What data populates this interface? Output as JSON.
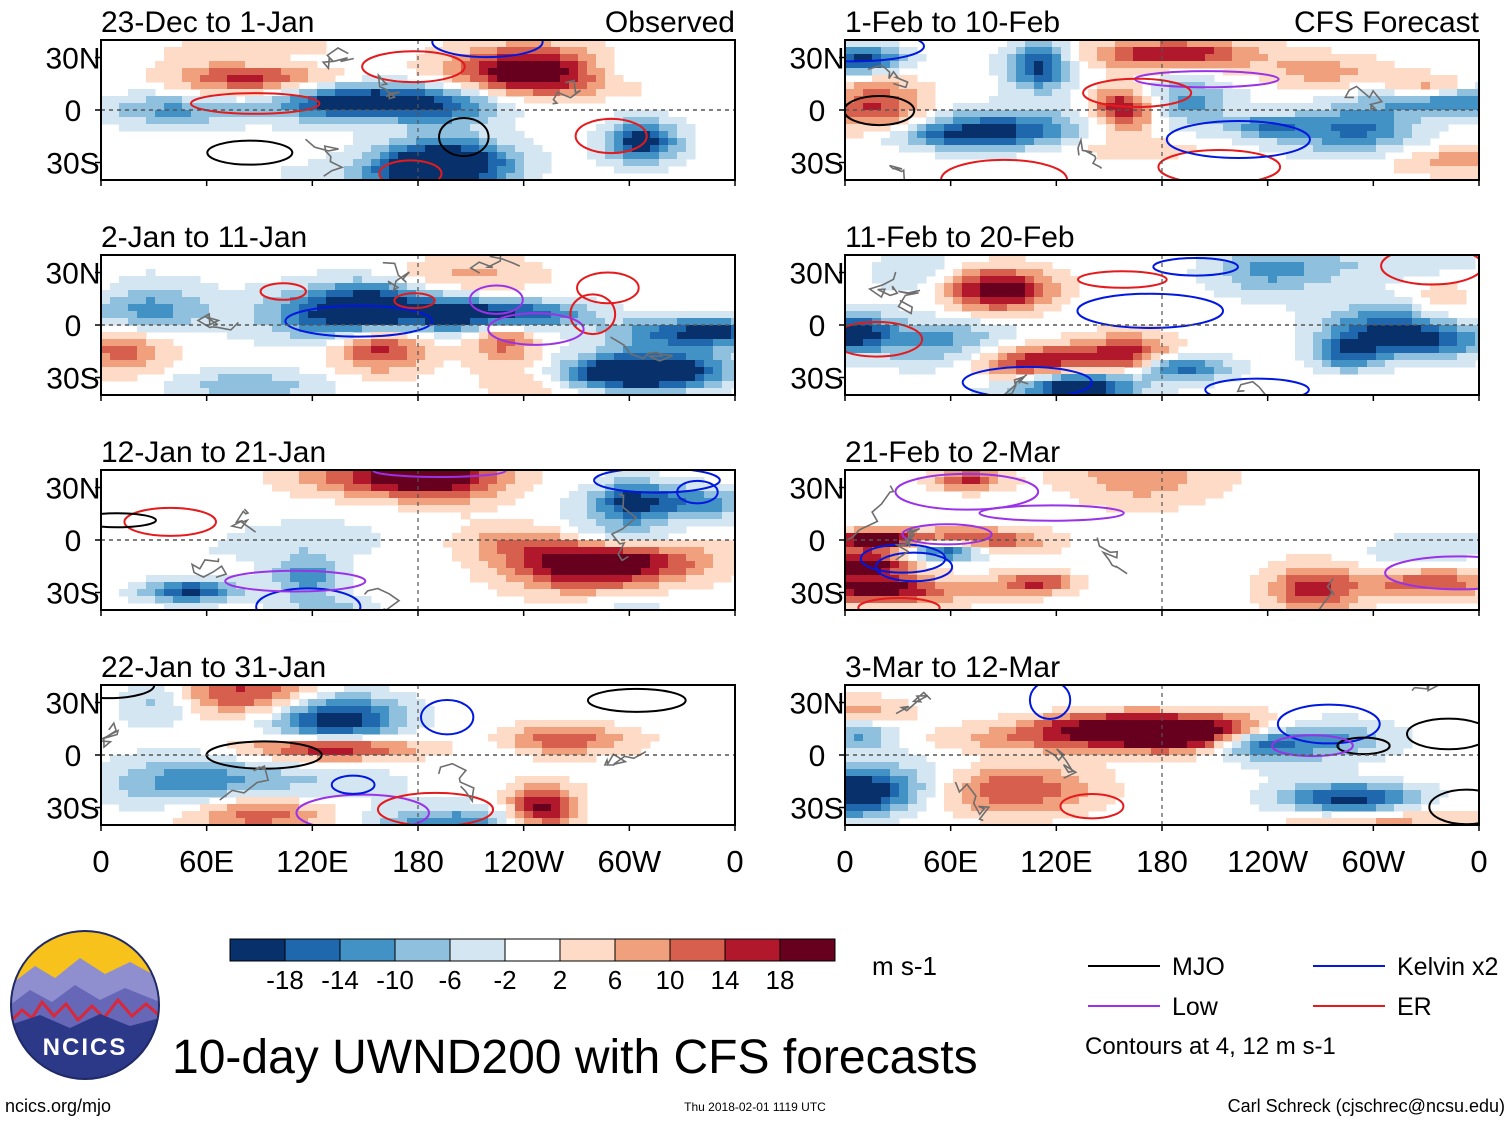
{
  "chart_data": {
    "type": "heatmap",
    "title": "10-day UWND200 with CFS forecasts",
    "variable": "UWND200",
    "units": "m s-1",
    "x_tick_labels": [
      "0",
      "60E",
      "120E",
      "180",
      "120W",
      "60W",
      "0"
    ],
    "y_tick_labels": [
      "30N",
      "0",
      "30S"
    ],
    "xlim": [
      0,
      360
    ],
    "ylim": [
      -40,
      40
    ],
    "columns": [
      {
        "label": "Observed",
        "panels": [
          {
            "period": "23-Dec to 1-Jan"
          },
          {
            "period": "2-Jan to 11-Jan"
          },
          {
            "period": "12-Jan to 21-Jan"
          },
          {
            "period": "22-Jan to 31-Jan"
          }
        ]
      },
      {
        "label": "CFS Forecast",
        "panels": [
          {
            "period": "1-Feb to 10-Feb"
          },
          {
            "period": "11-Feb to 20-Feb"
          },
          {
            "period": "21-Feb to 2-Mar"
          },
          {
            "period": "3-Mar to 12-Mar"
          }
        ]
      }
    ],
    "colorbar": {
      "levels": [
        "-18",
        "-14",
        "-10",
        "-6",
        "-2",
        "2",
        "6",
        "10",
        "14",
        "18"
      ],
      "colors": [
        "#08306b",
        "#1f68ae",
        "#4392c6",
        "#8fc1de",
        "#d5e6f3",
        "#ffffff",
        "#fddbc7",
        "#f0a07c",
        "#d6604d",
        "#b2182b",
        "#67001f"
      ],
      "units": "m s-1"
    },
    "legend": [
      {
        "label": "MJO",
        "color": "#000000"
      },
      {
        "label": "Kelvin x2",
        "color": "#0018e0"
      },
      {
        "label": "Low",
        "color": "#9a32e8"
      },
      {
        "label": "ER",
        "color": "#e41a1c"
      }
    ],
    "contour_note": "Contours at 4, 12 m s-1"
  },
  "footer": {
    "logo_text": "NCICS",
    "site": "ncics.org/mjo",
    "timestamp": "Thu 2018-02-01 1119 UTC",
    "credit": "Carl Schreck (cjschrec@ncsu.edu)"
  }
}
